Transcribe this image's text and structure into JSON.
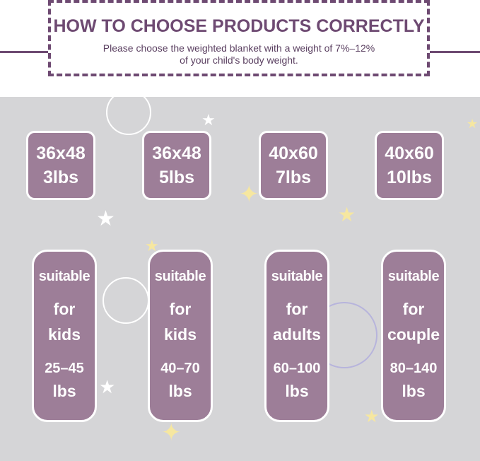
{
  "header": {
    "title": "HOW TO CHOOSE PRODUCTS CORRECTLY",
    "subtitle_line1": "Please choose the weighted blanket with a weight of 7%–12%",
    "subtitle_line2": "of your child's body weight."
  },
  "colors": {
    "accent": "#6e4a72",
    "card": "#9d7e98",
    "background": "#d5d5d7",
    "star": "#f6e7a0"
  },
  "sizes": [
    {
      "dimensions": "36x48",
      "weight": "3lbs"
    },
    {
      "dimensions": "36x48",
      "weight": "5lbs"
    },
    {
      "dimensions": "40x60",
      "weight": "7lbs"
    },
    {
      "dimensions": "40x60",
      "weight": "10lbs"
    }
  ],
  "suitability": [
    {
      "line1": "suitable",
      "line2": "for",
      "line3": "kids",
      "range": "25–45",
      "unit": "lbs"
    },
    {
      "line1": "suitable",
      "line2": "for",
      "line3": "kids",
      "range": "40–70",
      "unit": "lbs"
    },
    {
      "line1": "suitable",
      "line2": "for",
      "line3": "adults",
      "range": "60–100",
      "unit": "lbs"
    },
    {
      "line1": "suitable",
      "line2": "for",
      "line3": "couple",
      "range": "80–140",
      "unit": "lbs"
    }
  ]
}
